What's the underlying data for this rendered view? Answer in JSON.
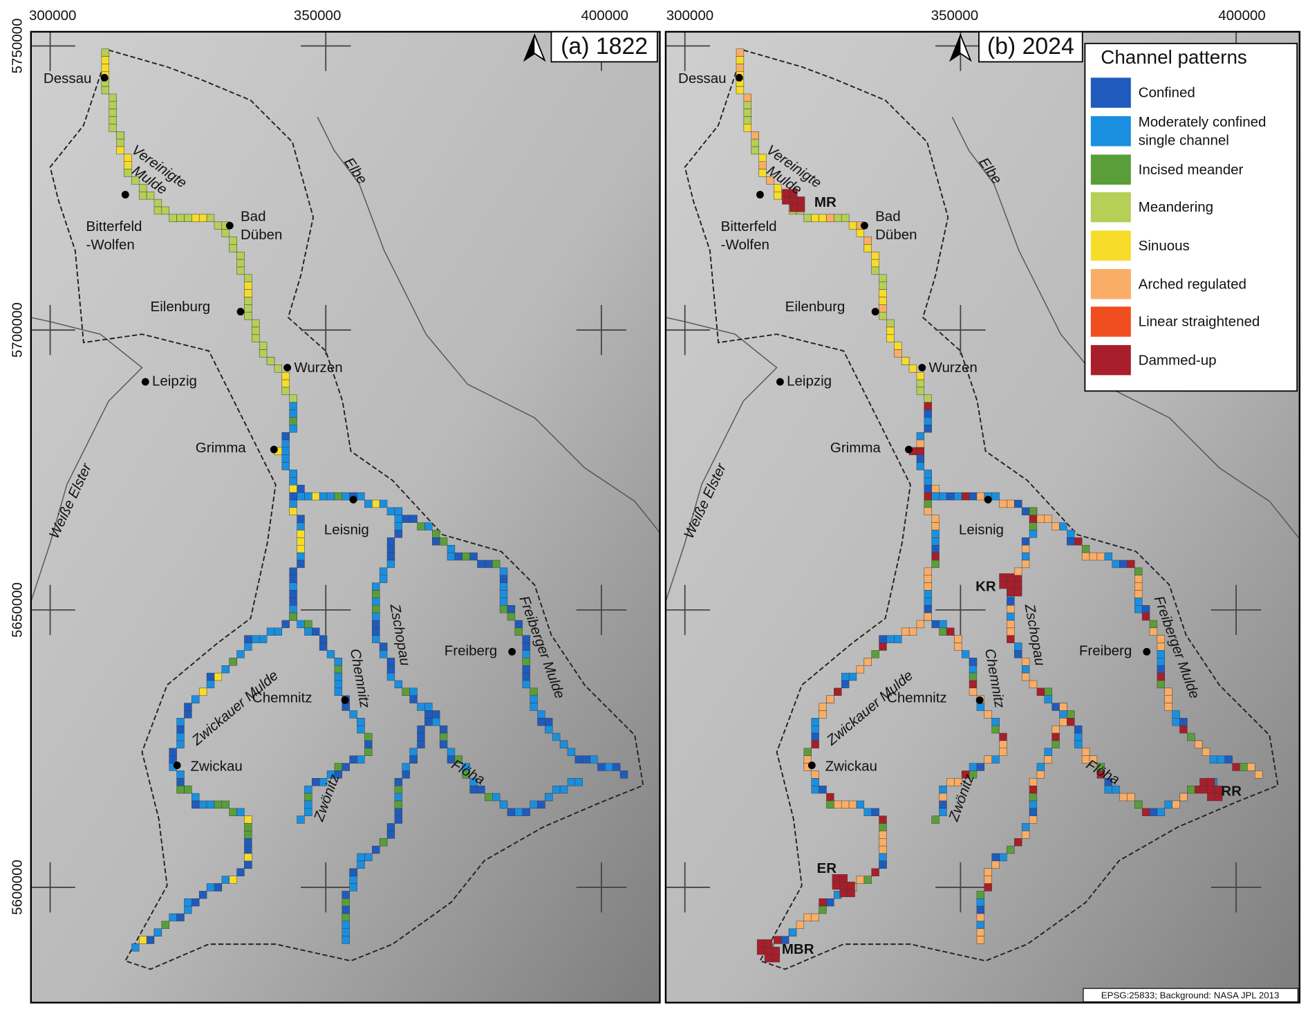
{
  "panels": [
    {
      "title": "(a) 1822"
    },
    {
      "title": "(b) 2024",
      "reaches": [
        "MR",
        "KR",
        "ER",
        "RR",
        "MBR"
      ]
    }
  ],
  "map": {
    "x_labels": [
      "300000",
      "350000",
      "400000"
    ],
    "y_labels": [
      "5750000",
      "5700000",
      "5650000",
      "5600000"
    ],
    "places": [
      {
        "lines": [
          "Dessau"
        ]
      },
      {
        "lines": [
          "Bitterfeld",
          "-Wolfen"
        ]
      },
      {
        "lines": [
          "Bad",
          "Düben"
        ]
      },
      {
        "lines": [
          "Eilenburg"
        ]
      },
      {
        "lines": [
          "Wurzen"
        ]
      },
      {
        "lines": [
          "Leipzig"
        ]
      },
      {
        "lines": [
          "Grimma"
        ]
      },
      {
        "lines": [
          "Leisnig"
        ]
      },
      {
        "lines": [
          "Freiberg"
        ]
      },
      {
        "lines": [
          "Chemnitz"
        ]
      },
      {
        "lines": [
          "Zwickau"
        ]
      }
    ],
    "rivers": [
      {
        "lines": [
          "Vereinigte",
          "Mulde"
        ]
      },
      {
        "lines": [
          "Elbe"
        ]
      },
      {
        "lines": [
          "Weiße Elster"
        ]
      },
      {
        "lines": [
          "Zschopau"
        ]
      },
      {
        "lines": [
          "Zwickauer Mulde"
        ]
      },
      {
        "lines": [
          "Chemnitz"
        ]
      },
      {
        "lines": [
          "Freiberger Mulde"
        ]
      },
      {
        "lines": [
          "Flöha"
        ]
      },
      {
        "lines": [
          "Zwönitz"
        ]
      }
    ]
  },
  "legend": {
    "title": "Channel patterns",
    "items": [
      {
        "lines": [
          "Confined"
        ],
        "color": "#1f5bbd"
      },
      {
        "lines": [
          "Moderately confined",
          "single channel"
        ],
        "color": "#1a8fe0"
      },
      {
        "lines": [
          "Incised meander"
        ],
        "color": "#5a9e3a"
      },
      {
        "lines": [
          "Meandering"
        ],
        "color": "#b5cf57"
      },
      {
        "lines": [
          "Sinuous"
        ],
        "color": "#f7dc2a"
      },
      {
        "lines": [
          "Arched regulated"
        ],
        "color": "#f9ad66"
      },
      {
        "lines": [
          "Linear straightened"
        ],
        "color": "#f04e1f"
      },
      {
        "lines": [
          "Dammed-up"
        ],
        "color": "#a81e2a"
      }
    ]
  },
  "credit": "EPSG:25833; Background: NASA JPL 2013"
}
